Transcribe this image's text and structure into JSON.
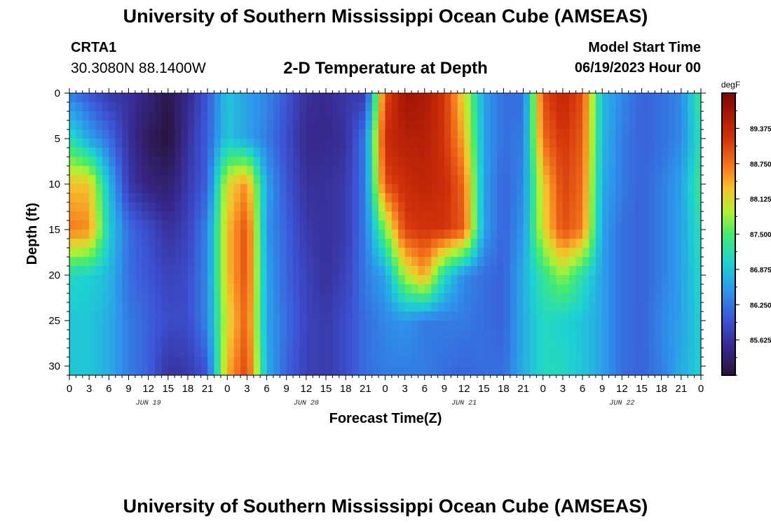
{
  "header": {
    "title": "University of Southern Mississippi Ocean Cube (AMSEAS)",
    "station": "CRTA1",
    "coords": "30.3080N  88.1400W",
    "plot_title": "2-D Temperature at Depth",
    "model_start_label": "Model Start Time",
    "model_start_value": "06/19/2023 Hour 00"
  },
  "footer": {
    "title": "University of Southern Mississippi Ocean Cube (AMSEAS)"
  },
  "chart_data": {
    "type": "heatmap",
    "title": "2-D Temperature at Depth",
    "xlabel": "Forecast Time(Z)",
    "ylabel": "Depth (ft)",
    "x_hours_range": [
      0,
      96
    ],
    "x_tick_labels": [
      "0",
      "3",
      "6",
      "9",
      "12",
      "15",
      "18",
      "21",
      "0",
      "3",
      "6",
      "9",
      "12",
      "15",
      "18",
      "21",
      "0",
      "3",
      "6",
      "9",
      "12",
      "15",
      "18",
      "21",
      "0",
      "3",
      "6",
      "9",
      "12",
      "15",
      "18",
      "21",
      "0"
    ],
    "day_labels": [
      "JUN 19",
      "JUN 20",
      "JUN 21",
      "JUN 22"
    ],
    "y_range": [
      0,
      31
    ],
    "y_ticks": [
      0,
      5,
      10,
      15,
      20,
      25,
      30
    ],
    "colorbar": {
      "unit": "degF",
      "min": 85.0,
      "max": 90.0,
      "tick_values": [
        89.375,
        88.75,
        88.125,
        87.5,
        86.875,
        86.25,
        85.625
      ],
      "tick_labels": [
        "89.375",
        "88.750",
        "88.125",
        "87.500",
        "86.875",
        "86.250",
        "85.625"
      ]
    },
    "depths": [
      0,
      5,
      10,
      15,
      20,
      25,
      31
    ],
    "hours": [
      0,
      3,
      6,
      9,
      12,
      15,
      18,
      21,
      24,
      27,
      30,
      33,
      36,
      39,
      42,
      45,
      48,
      51,
      54,
      57,
      60,
      63,
      66,
      69,
      72,
      75,
      78,
      81,
      84,
      87,
      90,
      93,
      96
    ],
    "values": [
      [
        86.3,
        86.0,
        85.7,
        85.6,
        85.4,
        85.1,
        85.5,
        86.0,
        86.9,
        86.6,
        86.4,
        86.0,
        85.6,
        85.5,
        85.7,
        85.7,
        89.0,
        89.7,
        89.6,
        89.2,
        88.1,
        86.6,
        86.2,
        86.2,
        89.0,
        89.4,
        89.0,
        86.8,
        86.4,
        86.1,
        86.2,
        86.4,
        87.4
      ],
      [
        87.2,
        86.6,
        86.2,
        85.6,
        85.2,
        85.0,
        85.6,
        86.1,
        86.9,
        86.6,
        86.3,
        85.9,
        85.5,
        85.5,
        85.6,
        86.3,
        89.3,
        89.5,
        89.5,
        89.2,
        88.4,
        86.6,
        86.2,
        86.3,
        88.8,
        89.2,
        88.9,
        86.8,
        86.3,
        86.1,
        86.2,
        86.4,
        87.2
      ],
      [
        88.3,
        88.3,
        86.8,
        85.7,
        85.4,
        85.3,
        85.7,
        86.1,
        88.1,
        88.6,
        86.6,
        86.0,
        85.6,
        85.6,
        85.7,
        86.3,
        89.0,
        89.3,
        89.4,
        89.3,
        88.8,
        86.6,
        86.1,
        86.4,
        88.2,
        89.1,
        88.8,
        86.7,
        86.3,
        86.1,
        86.3,
        86.6,
        87.4
      ],
      [
        88.7,
        88.6,
        87.0,
        86.2,
        85.9,
        85.6,
        85.8,
        86.4,
        88.3,
        89.0,
        86.5,
        86.1,
        85.7,
        85.6,
        85.7,
        86.3,
        87.7,
        89.1,
        89.2,
        89.2,
        88.9,
        86.6,
        86.1,
        86.5,
        88.1,
        89.0,
        88.7,
        86.6,
        86.2,
        86.1,
        86.3,
        86.6,
        87.2
      ],
      [
        87.1,
        87.0,
        86.8,
        86.2,
        86.0,
        85.8,
        85.9,
        86.4,
        88.3,
        89.0,
        86.6,
        86.1,
        85.8,
        85.6,
        85.8,
        86.3,
        86.6,
        87.9,
        88.5,
        87.1,
        86.4,
        86.2,
        86.1,
        86.7,
        87.3,
        87.8,
        87.2,
        86.6,
        86.2,
        86.1,
        86.3,
        86.6,
        87.1
      ],
      [
        86.9,
        86.9,
        86.7,
        86.3,
        86.1,
        85.9,
        85.9,
        86.4,
        88.1,
        88.9,
        86.6,
        86.2,
        85.8,
        85.7,
        85.9,
        86.2,
        86.4,
        86.5,
        86.3,
        86.3,
        86.3,
        86.2,
        86.1,
        86.7,
        87.1,
        87.0,
        86.9,
        86.6,
        86.2,
        86.1,
        86.4,
        86.6,
        87.0
      ],
      [
        86.9,
        86.9,
        86.7,
        86.3,
        86.1,
        85.6,
        85.7,
        86.0,
        88.4,
        89.1,
        86.7,
        86.1,
        85.8,
        85.7,
        85.9,
        86.2,
        86.3,
        86.3,
        86.3,
        86.2,
        86.1,
        86.2,
        86.2,
        86.7,
        87.1,
        87.1,
        86.9,
        86.6,
        86.2,
        86.1,
        86.3,
        86.7,
        87.0
      ]
    ]
  }
}
